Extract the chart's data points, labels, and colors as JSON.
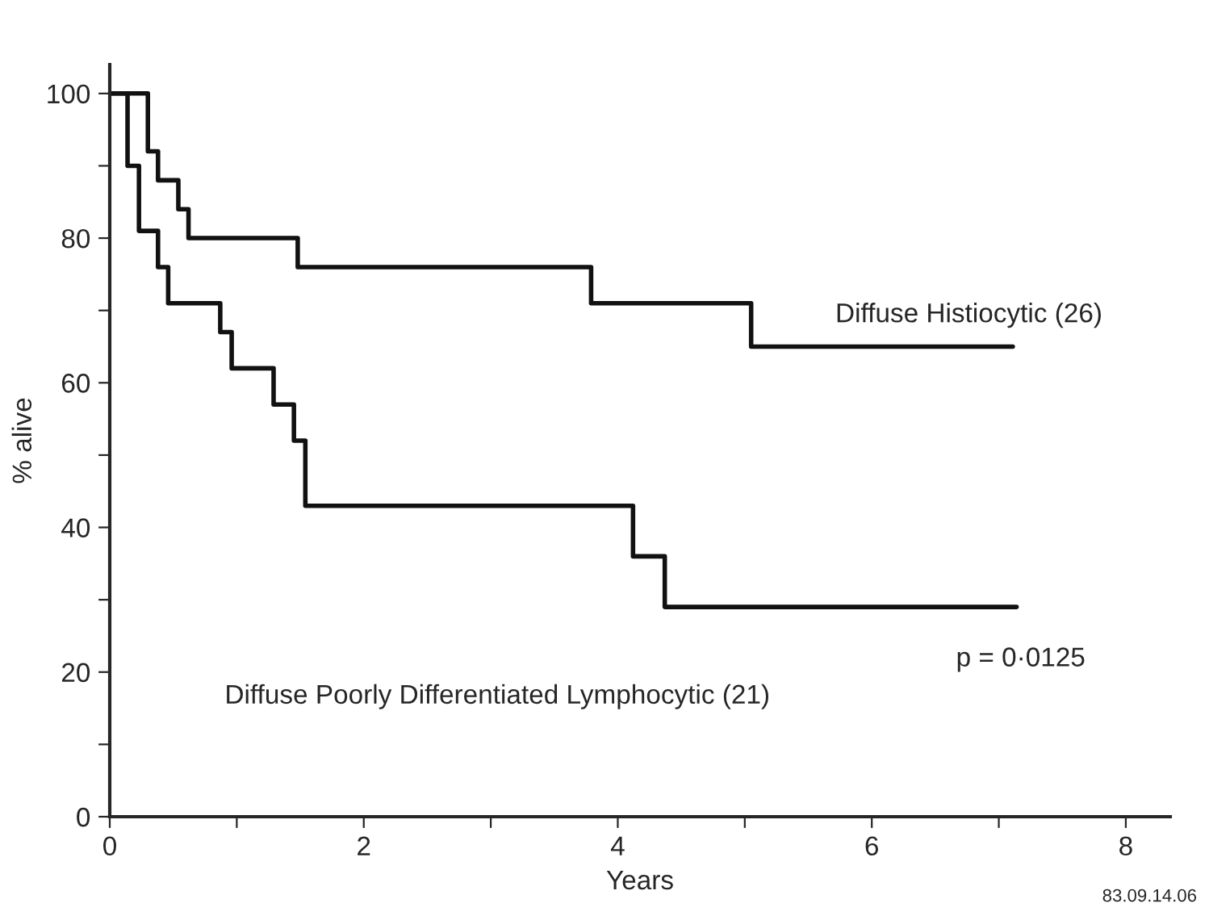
{
  "chart_data": {
    "type": "step",
    "xlabel": "Years",
    "ylabel": "% alive",
    "series": [
      {
        "name": "Diffuse Histiocytic (26)",
        "color": "#111111",
        "x": [
          0,
          0.3,
          0.38,
          0.54,
          0.62,
          1.48,
          3.79,
          5.05,
          7.11
        ],
        "values": [
          100,
          92,
          88,
          84,
          80,
          76,
          71,
          65,
          65
        ]
      },
      {
        "name": "Diffuse Poorly Differentiated Lymphocytic (21)",
        "color": "#111111",
        "x": [
          0,
          0.14,
          0.23,
          0.38,
          0.46,
          0.87,
          0.96,
          1.29,
          1.45,
          1.54,
          4.12,
          4.37,
          7.14
        ],
        "values": [
          100,
          90,
          81,
          76,
          71,
          67,
          62,
          57,
          52,
          43,
          36,
          29,
          29
        ]
      }
    ],
    "xlim": [
      0,
      8.35
    ],
    "ylim": [
      0,
      104
    ],
    "xticks": [
      0,
      {
        "value": 1,
        "label": null
      },
      2,
      {
        "value": 3,
        "label": null
      },
      4,
      {
        "value": 5,
        "label": null
      },
      6,
      {
        "value": 7,
        "label": null
      },
      8
    ],
    "yticks": [
      0,
      {
        "value": 10,
        "label": null
      },
      20,
      {
        "value": 30,
        "label": null
      },
      40,
      {
        "value": 50,
        "label": null
      },
      60,
      {
        "value": 70,
        "label": null
      },
      80,
      {
        "value": 90,
        "label": null
      },
      100
    ],
    "annotations": [
      "p = 0·0125",
      "83.09.14.06"
    ],
    "grid": false,
    "legend": false,
    "marker": "none",
    "line_style": "solid"
  }
}
